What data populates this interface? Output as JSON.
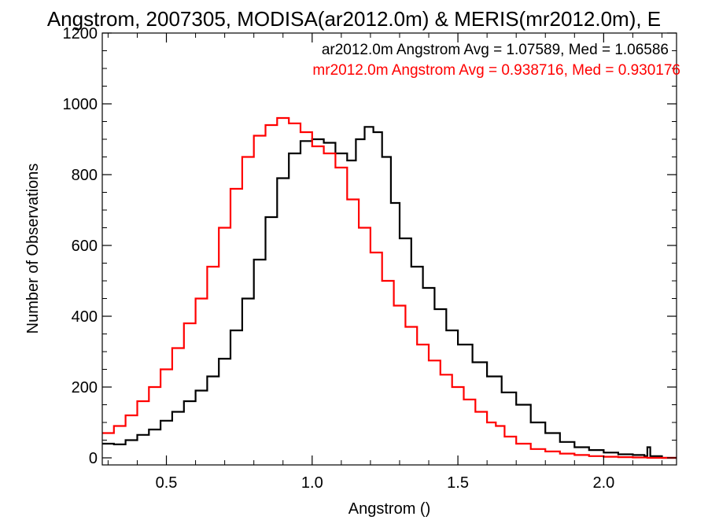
{
  "chart_data": {
    "type": "line",
    "title": "Angstrom, 2007305, MODISA(ar2012.0m) & MERIS(mr2012.0m), E",
    "xlabel": "Angstrom ()",
    "ylabel": "Number of Observations",
    "xlim": [
      0.28,
      2.25
    ],
    "ylim": [
      -20,
      1200
    ],
    "x_ticks": [
      0.5,
      1.0,
      1.5,
      2.0
    ],
    "x_tick_labels": [
      "0.5",
      "1.0",
      "1.5",
      "2.0"
    ],
    "y_ticks": [
      0,
      200,
      400,
      600,
      800,
      1000,
      1200
    ],
    "y_tick_labels": [
      "0",
      "200",
      "400",
      "600",
      "800",
      "1000",
      "1200"
    ],
    "grid": false,
    "legend_position": "top-right",
    "legend": [
      {
        "text": "ar2012.0m Angstrom Avg = 1.07589, Med = 1.06586",
        "color": "#000000"
      },
      {
        "text": "mr2012.0m Angstrom Avg = 0.938716, Med = 0.930176",
        "color": "#ff0000"
      }
    ],
    "series": [
      {
        "name": "ar2012.0m",
        "color": "#000000",
        "points": [
          [
            0.28,
            40
          ],
          [
            0.32,
            38
          ],
          [
            0.36,
            50
          ],
          [
            0.4,
            65
          ],
          [
            0.44,
            80
          ],
          [
            0.48,
            105
          ],
          [
            0.52,
            130
          ],
          [
            0.56,
            160
          ],
          [
            0.6,
            190
          ],
          [
            0.64,
            230
          ],
          [
            0.68,
            280
          ],
          [
            0.72,
            360
          ],
          [
            0.76,
            450
          ],
          [
            0.8,
            560
          ],
          [
            0.84,
            680
          ],
          [
            0.88,
            790
          ],
          [
            0.92,
            860
          ],
          [
            0.96,
            895
          ],
          [
            1.0,
            900
          ],
          [
            1.04,
            890
          ],
          [
            1.08,
            860
          ],
          [
            1.12,
            840
          ],
          [
            1.15,
            900
          ],
          [
            1.18,
            935
          ],
          [
            1.21,
            920
          ],
          [
            1.24,
            850
          ],
          [
            1.27,
            720
          ],
          [
            1.3,
            620
          ],
          [
            1.34,
            540
          ],
          [
            1.38,
            480
          ],
          [
            1.42,
            420
          ],
          [
            1.46,
            360
          ],
          [
            1.5,
            320
          ],
          [
            1.55,
            270
          ],
          [
            1.6,
            230
          ],
          [
            1.65,
            185
          ],
          [
            1.7,
            150
          ],
          [
            1.75,
            100
          ],
          [
            1.8,
            70
          ],
          [
            1.85,
            45
          ],
          [
            1.9,
            30
          ],
          [
            1.95,
            22
          ],
          [
            2.0,
            15
          ],
          [
            2.05,
            10
          ],
          [
            2.1,
            8
          ],
          [
            2.14,
            5
          ],
          [
            2.15,
            30
          ],
          [
            2.16,
            5
          ],
          [
            2.2,
            0
          ],
          [
            2.25,
            0
          ]
        ]
      },
      {
        "name": "mr2012.0m",
        "color": "#ff0000",
        "points": [
          [
            0.28,
            70
          ],
          [
            0.32,
            90
          ],
          [
            0.36,
            120
          ],
          [
            0.4,
            160
          ],
          [
            0.44,
            200
          ],
          [
            0.48,
            250
          ],
          [
            0.52,
            310
          ],
          [
            0.56,
            380
          ],
          [
            0.6,
            450
          ],
          [
            0.64,
            540
          ],
          [
            0.68,
            650
          ],
          [
            0.72,
            760
          ],
          [
            0.76,
            850
          ],
          [
            0.8,
            910
          ],
          [
            0.84,
            940
          ],
          [
            0.88,
            960
          ],
          [
            0.92,
            945
          ],
          [
            0.96,
            920
          ],
          [
            1.0,
            880
          ],
          [
            1.04,
            860
          ],
          [
            1.08,
            820
          ],
          [
            1.12,
            730
          ],
          [
            1.16,
            650
          ],
          [
            1.2,
            580
          ],
          [
            1.24,
            500
          ],
          [
            1.28,
            430
          ],
          [
            1.32,
            370
          ],
          [
            1.36,
            320
          ],
          [
            1.4,
            275
          ],
          [
            1.44,
            235
          ],
          [
            1.48,
            200
          ],
          [
            1.52,
            165
          ],
          [
            1.56,
            130
          ],
          [
            1.6,
            100
          ],
          [
            1.63,
            90
          ],
          [
            1.66,
            60
          ],
          [
            1.7,
            40
          ],
          [
            1.75,
            25
          ],
          [
            1.8,
            18
          ],
          [
            1.85,
            12
          ],
          [
            1.9,
            8
          ],
          [
            1.95,
            5
          ],
          [
            2.0,
            3
          ],
          [
            2.05,
            2
          ],
          [
            2.1,
            1
          ],
          [
            2.15,
            0
          ],
          [
            2.25,
            0
          ]
        ]
      }
    ]
  }
}
